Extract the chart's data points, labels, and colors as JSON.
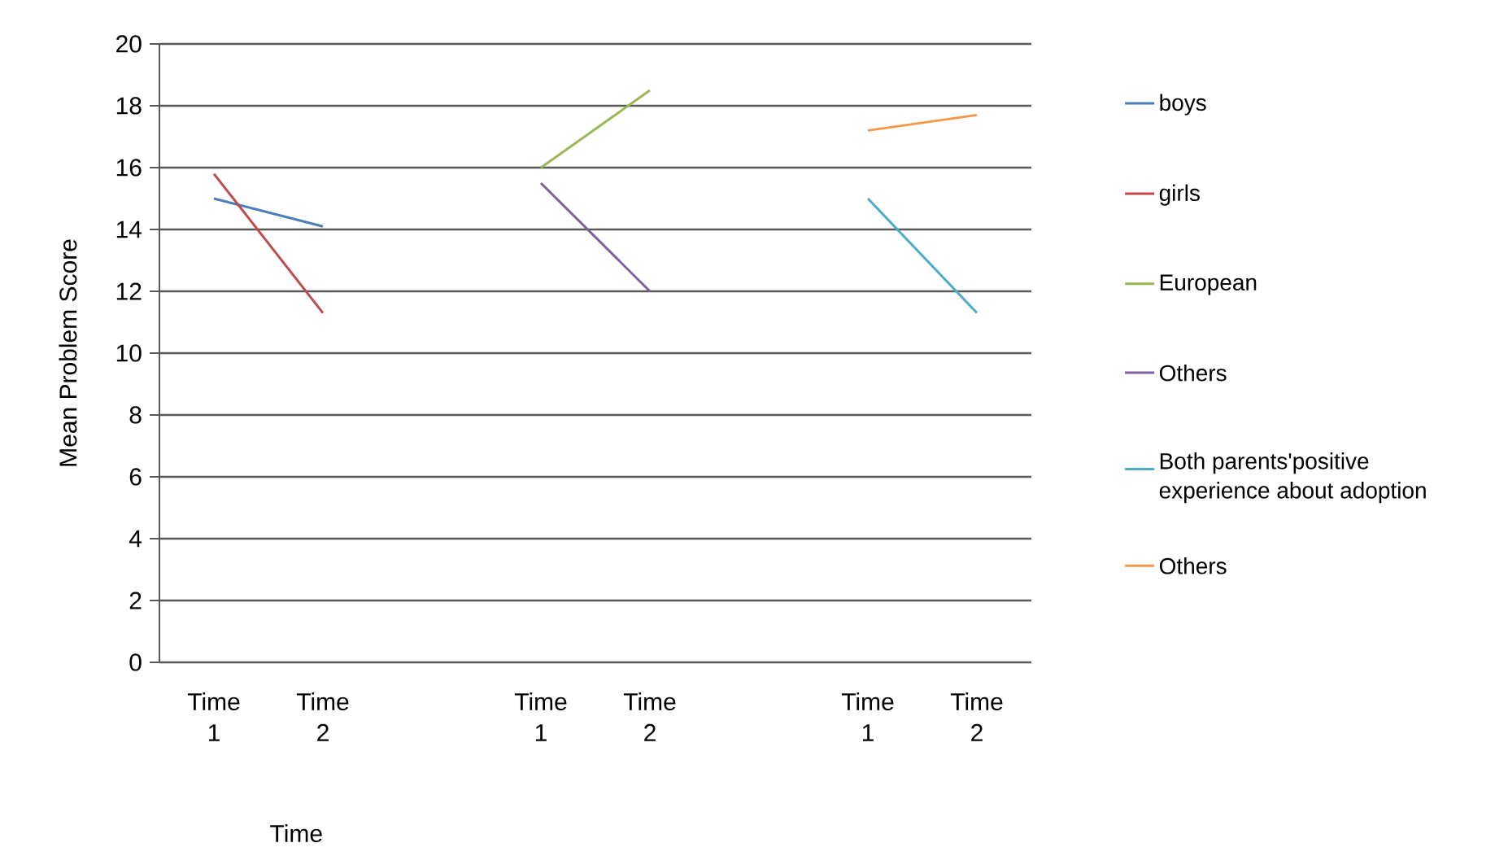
{
  "chart_data": {
    "type": "line",
    "xlabel": "Time",
    "ylabel": "Mean  Problem Score",
    "categories": [
      "Time 1",
      "Time 2",
      null,
      "Time 1",
      "Time 2",
      null,
      "Time 1",
      "Time 2"
    ],
    "series": [
      {
        "name": "boys",
        "color": "#4a7ebb",
        "values": [
          15.0,
          14.1,
          null,
          null,
          null,
          null,
          null,
          null
        ]
      },
      {
        "name": "girls",
        "color": "#be4b48",
        "values": [
          15.8,
          11.3,
          null,
          null,
          null,
          null,
          null,
          null
        ]
      },
      {
        "name": "European",
        "color": "#98b954",
        "values": [
          null,
          null,
          null,
          16.0,
          18.5,
          null,
          null,
          null
        ]
      },
      {
        "name": "Others",
        "color": "#7d60a0",
        "values": [
          null,
          null,
          null,
          15.5,
          12.0,
          null,
          null,
          null
        ]
      },
      {
        "name": "Both parents'positive experience about adoption",
        "color": "#4bacc6",
        "values": [
          null,
          null,
          null,
          null,
          null,
          null,
          15.0,
          11.3
        ]
      },
      {
        "name": "Others",
        "color": "#f79646",
        "values": [
          null,
          null,
          null,
          null,
          null,
          null,
          17.2,
          17.7
        ]
      }
    ],
    "ylim": [
      0,
      20
    ],
    "yticks": [
      0,
      2,
      4,
      6,
      8,
      10,
      12,
      14,
      16,
      18,
      20
    ],
    "grid": "y",
    "legend": "right",
    "marker": "none",
    "line_style": "solid"
  }
}
